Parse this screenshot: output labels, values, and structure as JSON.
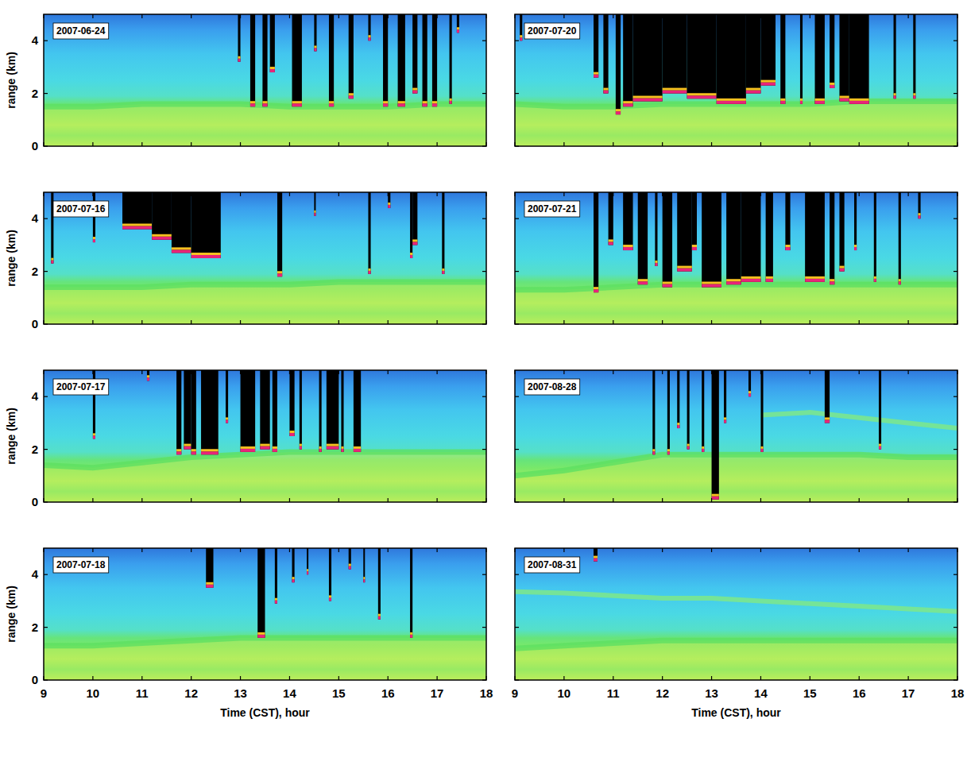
{
  "chart_data": [
    {
      "type": "heatmap",
      "title": "2007-06-24",
      "ylabel": "range (km)",
      "xlim": [
        9,
        18
      ],
      "xticks": [
        9,
        10,
        11,
        12,
        13,
        14,
        15,
        16,
        17,
        18
      ],
      "ylim": [
        0,
        5
      ],
      "yticks": [
        0,
        2,
        4
      ],
      "tick_labels": "y",
      "boundary_layer": {
        "x": [
          9,
          10,
          11,
          12,
          13,
          14,
          15,
          16,
          17,
          18
        ],
        "values": [
          1.5,
          1.5,
          1.6,
          1.6,
          1.6,
          1.5,
          1.5,
          1.5,
          1.6,
          1.6
        ]
      },
      "clouds": [
        {
          "start": 12.95,
          "end": 13.0,
          "base": 3.2
        },
        {
          "start": 13.2,
          "end": 13.3,
          "base": 1.5
        },
        {
          "start": 13.45,
          "end": 13.55,
          "base": 1.5
        },
        {
          "start": 13.6,
          "end": 13.7,
          "base": 2.8
        },
        {
          "start": 14.05,
          "end": 14.25,
          "base": 1.5
        },
        {
          "start": 14.5,
          "end": 14.55,
          "base": 3.6
        },
        {
          "start": 14.8,
          "end": 14.9,
          "base": 1.5
        },
        {
          "start": 15.2,
          "end": 15.3,
          "base": 1.8
        },
        {
          "start": 15.6,
          "end": 15.65,
          "base": 4.0
        },
        {
          "start": 15.9,
          "end": 16.0,
          "base": 1.5
        },
        {
          "start": 16.2,
          "end": 16.35,
          "base": 1.5
        },
        {
          "start": 16.5,
          "end": 16.6,
          "base": 2.0
        },
        {
          "start": 16.7,
          "end": 16.8,
          "base": 1.5
        },
        {
          "start": 16.9,
          "end": 17.0,
          "base": 1.5
        },
        {
          "start": 17.25,
          "end": 17.3,
          "base": 1.6
        },
        {
          "start": 17.4,
          "end": 17.45,
          "base": 4.3
        }
      ]
    },
    {
      "type": "heatmap",
      "title": "2007-07-16",
      "ylabel": "range (km)",
      "xlim": [
        9,
        18
      ],
      "xticks": [
        9,
        10,
        11,
        12,
        13,
        14,
        15,
        16,
        17,
        18
      ],
      "ylim": [
        0,
        5
      ],
      "yticks": [
        0,
        2,
        4
      ],
      "tick_labels": "y",
      "boundary_layer": {
        "x": [
          9,
          10,
          11,
          12,
          13,
          14,
          15,
          16,
          17,
          18
        ],
        "values": [
          1.4,
          1.4,
          1.4,
          1.5,
          1.5,
          1.5,
          1.6,
          1.6,
          1.6,
          1.6
        ]
      },
      "clouds": [
        {
          "start": 9.15,
          "end": 9.2,
          "base": 2.3
        },
        {
          "start": 10.0,
          "end": 10.05,
          "base": 3.1
        },
        {
          "start": 10.6,
          "end": 11.2,
          "base": 3.6
        },
        {
          "start": 11.2,
          "end": 11.6,
          "base": 3.2
        },
        {
          "start": 11.6,
          "end": 12.0,
          "base": 2.7
        },
        {
          "start": 12.0,
          "end": 12.6,
          "base": 2.5
        },
        {
          "start": 13.75,
          "end": 13.85,
          "base": 1.8
        },
        {
          "start": 14.5,
          "end": 14.53,
          "base": 4.1
        },
        {
          "start": 15.6,
          "end": 15.65,
          "base": 1.9
        },
        {
          "start": 16.0,
          "end": 16.05,
          "base": 4.4
        },
        {
          "start": 16.45,
          "end": 16.5,
          "base": 2.5
        },
        {
          "start": 16.5,
          "end": 16.6,
          "base": 3.0
        },
        {
          "start": 17.1,
          "end": 17.15,
          "base": 1.9
        }
      ]
    },
    {
      "type": "heatmap",
      "title": "2007-07-17",
      "ylabel": "range (km)",
      "xlim": [
        9,
        18
      ],
      "xticks": [
        9,
        10,
        11,
        12,
        13,
        14,
        15,
        16,
        17,
        18
      ],
      "ylim": [
        0,
        5
      ],
      "yticks": [
        0,
        2,
        4
      ],
      "tick_labels": "y",
      "boundary_layer": {
        "x": [
          9,
          10,
          11,
          12,
          13,
          14,
          15,
          16,
          17,
          18
        ],
        "values": [
          1.4,
          1.3,
          1.5,
          1.7,
          1.8,
          1.9,
          1.9,
          1.9,
          1.9,
          1.9
        ]
      },
      "clouds": [
        {
          "start": 10.0,
          "end": 10.05,
          "base": 2.4
        },
        {
          "start": 11.1,
          "end": 11.15,
          "base": 4.6
        },
        {
          "start": 11.7,
          "end": 11.8,
          "base": 1.8
        },
        {
          "start": 11.85,
          "end": 12.0,
          "base": 2.0
        },
        {
          "start": 12.0,
          "end": 12.1,
          "base": 1.8
        },
        {
          "start": 12.2,
          "end": 12.55,
          "base": 1.8
        },
        {
          "start": 12.7,
          "end": 12.75,
          "base": 3.0
        },
        {
          "start": 13.0,
          "end": 13.3,
          "base": 1.9
        },
        {
          "start": 13.4,
          "end": 13.6,
          "base": 2.0
        },
        {
          "start": 13.65,
          "end": 13.75,
          "base": 1.9
        },
        {
          "start": 14.0,
          "end": 14.1,
          "base": 2.5
        },
        {
          "start": 14.2,
          "end": 14.25,
          "base": 2.0
        },
        {
          "start": 14.6,
          "end": 14.65,
          "base": 1.9
        },
        {
          "start": 14.75,
          "end": 15.0,
          "base": 2.0
        },
        {
          "start": 15.05,
          "end": 15.1,
          "base": 1.9
        },
        {
          "start": 15.3,
          "end": 15.45,
          "base": 1.9
        }
      ]
    },
    {
      "type": "heatmap",
      "title": "2007-07-18",
      "ylabel": "range (km)",
      "xlabel": "Time (CST), hour",
      "xlim": [
        9,
        18
      ],
      "xticks": [
        9,
        10,
        11,
        12,
        13,
        14,
        15,
        16,
        17,
        18
      ],
      "ylim": [
        0,
        5
      ],
      "yticks": [
        0,
        2,
        4
      ],
      "tick_labels": true,
      "boundary_layer": {
        "x": [
          9,
          10,
          11,
          12,
          13,
          14,
          15,
          16,
          17,
          18
        ],
        "values": [
          1.3,
          1.3,
          1.4,
          1.5,
          1.6,
          1.6,
          1.6,
          1.6,
          1.6,
          1.6
        ]
      },
      "clouds": [
        {
          "start": 12.3,
          "end": 12.45,
          "base": 3.5
        },
        {
          "start": 13.35,
          "end": 13.5,
          "base": 1.6
        },
        {
          "start": 13.7,
          "end": 13.75,
          "base": 2.9
        },
        {
          "start": 14.05,
          "end": 14.1,
          "base": 3.7
        },
        {
          "start": 14.35,
          "end": 14.38,
          "base": 4.0
        },
        {
          "start": 14.8,
          "end": 14.85,
          "base": 3.0
        },
        {
          "start": 15.2,
          "end": 15.25,
          "base": 4.2
        },
        {
          "start": 15.5,
          "end": 15.53,
          "base": 3.7
        },
        {
          "start": 15.8,
          "end": 15.85,
          "base": 2.3
        },
        {
          "start": 16.45,
          "end": 16.5,
          "base": 1.6
        }
      ]
    },
    {
      "type": "heatmap",
      "title": "2007-07-20",
      "xlim": [
        9,
        18
      ],
      "xticks": [
        9,
        10,
        11,
        12,
        13,
        14,
        15,
        16,
        17,
        18
      ],
      "ylim": [
        0,
        5
      ],
      "yticks": [
        0,
        2,
        4
      ],
      "tick_labels": false,
      "boundary_layer": {
        "x": [
          9,
          10,
          11,
          12,
          13,
          14,
          15,
          16,
          17,
          18
        ],
        "values": [
          1.6,
          1.5,
          1.5,
          1.6,
          1.6,
          1.6,
          1.6,
          1.7,
          1.7,
          1.7
        ]
      },
      "clouds": [
        {
          "start": 9.1,
          "end": 9.15,
          "base": 4.0
        },
        {
          "start": 10.6,
          "end": 10.7,
          "base": 2.6
        },
        {
          "start": 10.8,
          "end": 10.9,
          "base": 2.0
        },
        {
          "start": 11.05,
          "end": 11.15,
          "base": 1.2
        },
        {
          "start": 11.2,
          "end": 11.4,
          "base": 1.5
        },
        {
          "start": 11.4,
          "end": 12.0,
          "base": 1.7
        },
        {
          "start": 12.0,
          "end": 12.5,
          "base": 2.0
        },
        {
          "start": 12.5,
          "end": 13.1,
          "base": 1.8
        },
        {
          "start": 13.1,
          "end": 13.7,
          "base": 1.6
        },
        {
          "start": 13.7,
          "end": 14.0,
          "base": 2.0
        },
        {
          "start": 14.0,
          "end": 14.3,
          "base": 2.3
        },
        {
          "start": 14.4,
          "end": 14.5,
          "base": 1.6
        },
        {
          "start": 14.8,
          "end": 14.85,
          "base": 1.6
        },
        {
          "start": 15.1,
          "end": 15.3,
          "base": 1.6
        },
        {
          "start": 15.4,
          "end": 15.5,
          "base": 2.2
        },
        {
          "start": 15.6,
          "end": 15.8,
          "base": 1.7
        },
        {
          "start": 15.8,
          "end": 16.2,
          "base": 1.6
        },
        {
          "start": 16.7,
          "end": 16.75,
          "base": 1.8
        },
        {
          "start": 17.1,
          "end": 17.15,
          "base": 1.8
        }
      ]
    },
    {
      "type": "heatmap",
      "title": "2007-07-21",
      "xlim": [
        9,
        18
      ],
      "xticks": [
        9,
        10,
        11,
        12,
        13,
        14,
        15,
        16,
        17,
        18
      ],
      "ylim": [
        0,
        5
      ],
      "yticks": [
        0,
        2,
        4
      ],
      "tick_labels": false,
      "boundary_layer": {
        "x": [
          9,
          10,
          11,
          12,
          13,
          14,
          15,
          16,
          17,
          18
        ],
        "values": [
          1.3,
          1.3,
          1.4,
          1.5,
          1.5,
          1.5,
          1.5,
          1.5,
          1.5,
          1.5
        ]
      },
      "clouds": [
        {
          "start": 10.6,
          "end": 10.7,
          "base": 1.2
        },
        {
          "start": 10.9,
          "end": 11.0,
          "base": 3.0
        },
        {
          "start": 11.2,
          "end": 11.4,
          "base": 2.8
        },
        {
          "start": 11.5,
          "end": 11.7,
          "base": 1.5
        },
        {
          "start": 11.85,
          "end": 11.9,
          "base": 2.2
        },
        {
          "start": 12.0,
          "end": 12.2,
          "base": 1.4
        },
        {
          "start": 12.3,
          "end": 12.6,
          "base": 2.0
        },
        {
          "start": 12.6,
          "end": 12.7,
          "base": 2.8
        },
        {
          "start": 12.8,
          "end": 13.2,
          "base": 1.4
        },
        {
          "start": 13.3,
          "end": 13.6,
          "base": 1.5
        },
        {
          "start": 13.6,
          "end": 14.0,
          "base": 1.6
        },
        {
          "start": 14.1,
          "end": 14.25,
          "base": 1.6
        },
        {
          "start": 14.5,
          "end": 14.6,
          "base": 2.8
        },
        {
          "start": 14.9,
          "end": 15.3,
          "base": 1.6
        },
        {
          "start": 15.4,
          "end": 15.5,
          "base": 1.5
        },
        {
          "start": 15.6,
          "end": 15.7,
          "base": 2.0
        },
        {
          "start": 15.9,
          "end": 15.95,
          "base": 2.8
        },
        {
          "start": 16.3,
          "end": 16.35,
          "base": 1.6
        },
        {
          "start": 16.8,
          "end": 16.85,
          "base": 1.5
        },
        {
          "start": 17.2,
          "end": 17.25,
          "base": 4.0
        }
      ]
    },
    {
      "type": "heatmap",
      "title": "2007-08-28",
      "xlim": [
        9,
        18
      ],
      "xticks": [
        9,
        10,
        11,
        12,
        13,
        14,
        15,
        16,
        17,
        18
      ],
      "ylim": [
        0,
        5
      ],
      "yticks": [
        0,
        2,
        4
      ],
      "tick_labels": false,
      "boundary_layer": {
        "x": [
          9,
          10,
          11,
          12,
          13,
          14,
          15,
          16,
          17,
          18
        ],
        "values": [
          1.0,
          1.2,
          1.5,
          1.8,
          1.8,
          1.8,
          1.8,
          1.8,
          1.7,
          1.7
        ]
      },
      "elevated_layer": {
        "x": [
          14,
          15,
          16,
          17,
          18
        ],
        "values": [
          3.3,
          3.4,
          3.2,
          3.0,
          2.8
        ]
      },
      "clouds": [
        {
          "start": 11.8,
          "end": 11.85,
          "base": 1.8
        },
        {
          "start": 12.1,
          "end": 12.15,
          "base": 1.8
        },
        {
          "start": 12.3,
          "end": 12.35,
          "base": 2.8
        },
        {
          "start": 12.5,
          "end": 12.55,
          "base": 2.0
        },
        {
          "start": 12.8,
          "end": 12.85,
          "base": 1.9
        },
        {
          "start": 13.0,
          "end": 13.15,
          "base": 0.1
        },
        {
          "start": 13.25,
          "end": 13.3,
          "base": 3.0
        },
        {
          "start": 13.75,
          "end": 13.8,
          "base": 4.0
        },
        {
          "start": 14.0,
          "end": 14.05,
          "base": 1.9
        },
        {
          "start": 15.3,
          "end": 15.4,
          "base": 3.0
        },
        {
          "start": 16.4,
          "end": 16.45,
          "base": 2.0
        }
      ]
    },
    {
      "type": "heatmap",
      "title": "2007-08-31",
      "xlabel": "Time (CST), hour",
      "xlim": [
        9,
        18
      ],
      "xticks": [
        9,
        10,
        11,
        12,
        13,
        14,
        15,
        16,
        17,
        18
      ],
      "ylim": [
        0,
        5
      ],
      "yticks": [
        0,
        2,
        4
      ],
      "tick_labels": "x",
      "boundary_layer": {
        "x": [
          9,
          10,
          11,
          12,
          13,
          14,
          15,
          16,
          17,
          18
        ],
        "values": [
          1.2,
          1.3,
          1.4,
          1.5,
          1.5,
          1.5,
          1.5,
          1.5,
          1.5,
          1.5
        ]
      },
      "elevated_layer": {
        "x": [
          9,
          10,
          11,
          12,
          13,
          14,
          15,
          16,
          17,
          18
        ],
        "values": [
          3.35,
          3.3,
          3.2,
          3.1,
          3.1,
          3.0,
          2.9,
          2.8,
          2.7,
          2.6
        ]
      },
      "clouds": [
        {
          "start": 10.6,
          "end": 10.68,
          "base": 4.5
        }
      ]
    }
  ]
}
